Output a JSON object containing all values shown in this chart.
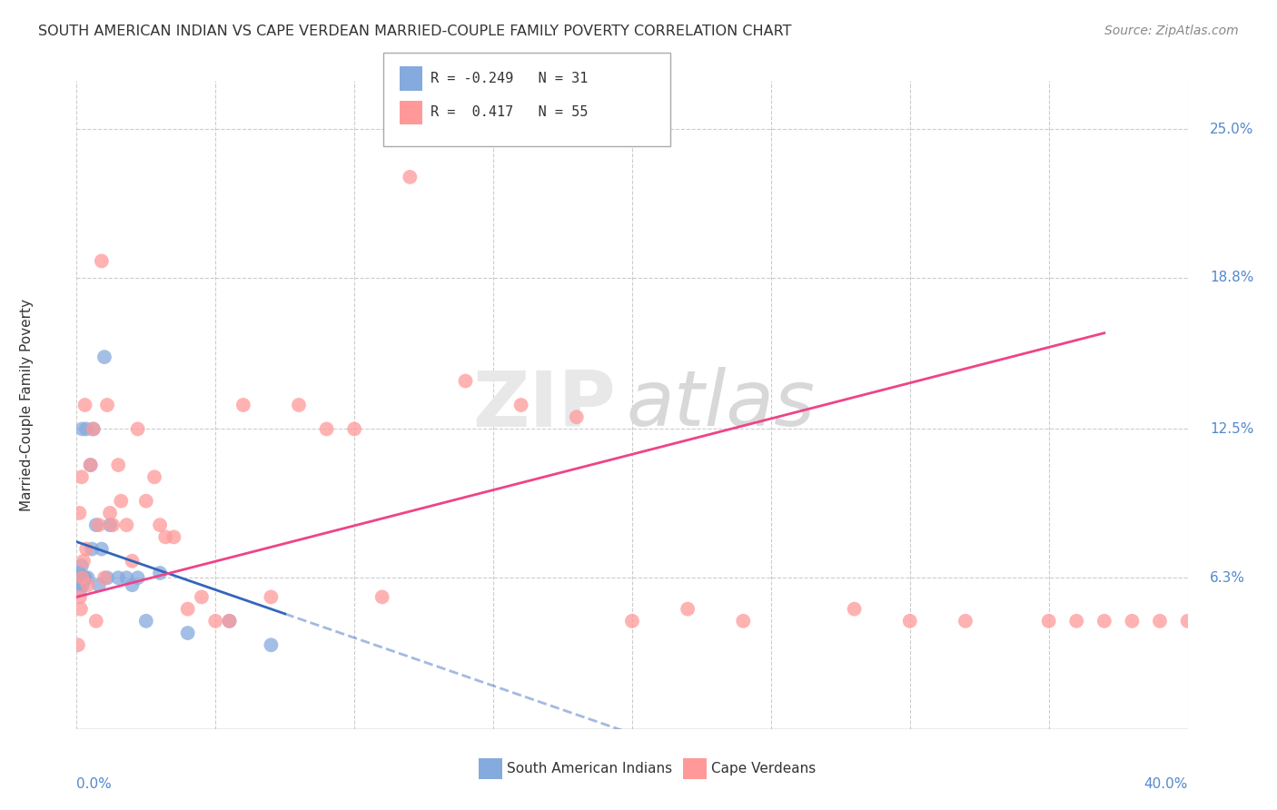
{
  "title": "SOUTH AMERICAN INDIAN VS CAPE VERDEAN MARRIED-COUPLE FAMILY POVERTY CORRELATION CHART",
  "source": "Source: ZipAtlas.com",
  "ylabel": "Married-Couple Family Poverty",
  "ytick_labels": [
    "6.3%",
    "12.5%",
    "18.8%",
    "25.0%"
  ],
  "ytick_values": [
    6.3,
    12.5,
    18.8,
    25.0
  ],
  "xmin": 0.0,
  "xmax": 40.0,
  "ymin": 0.0,
  "ymax": 27.0,
  "legend_blue_R": -0.249,
  "legend_blue_N": 31,
  "legend_pink_R": 0.417,
  "legend_pink_N": 55,
  "label_blue": "South American Indians",
  "label_pink": "Cape Verdeans",
  "blue_color": "#85AADD",
  "pink_color": "#FF9999",
  "blue_scatter_x": [
    0.05,
    0.08,
    0.1,
    0.12,
    0.15,
    0.18,
    0.2,
    0.22,
    0.25,
    0.28,
    0.3,
    0.35,
    0.4,
    0.5,
    0.55,
    0.6,
    0.7,
    0.8,
    0.9,
    1.0,
    1.1,
    1.2,
    1.5,
    1.8,
    2.0,
    2.2,
    2.5,
    3.0,
    4.0,
    5.5,
    7.0
  ],
  "blue_scatter_y": [
    6.3,
    6.0,
    6.5,
    5.8,
    6.3,
    6.8,
    12.5,
    6.0,
    6.3,
    6.3,
    6.3,
    12.5,
    6.3,
    11.0,
    7.5,
    12.5,
    8.5,
    6.0,
    7.5,
    15.5,
    6.3,
    8.5,
    6.3,
    6.3,
    6.0,
    6.3,
    4.5,
    6.5,
    4.0,
    4.5,
    3.5
  ],
  "pink_scatter_x": [
    0.05,
    0.1,
    0.12,
    0.15,
    0.18,
    0.2,
    0.25,
    0.3,
    0.35,
    0.4,
    0.5,
    0.6,
    0.7,
    0.8,
    0.9,
    1.0,
    1.1,
    1.2,
    1.3,
    1.5,
    1.6,
    1.8,
    2.0,
    2.2,
    2.5,
    2.8,
    3.0,
    3.2,
    3.5,
    4.0,
    4.5,
    5.0,
    5.5,
    6.0,
    7.0,
    8.0,
    9.0,
    10.0,
    11.0,
    12.0,
    14.0,
    16.0,
    18.0,
    20.0,
    22.0,
    24.0,
    28.0,
    30.0,
    32.0,
    35.0,
    36.0,
    37.0,
    38.0,
    39.0,
    40.0
  ],
  "pink_scatter_y": [
    3.5,
    9.0,
    5.5,
    5.0,
    10.5,
    6.3,
    7.0,
    13.5,
    7.5,
    6.0,
    11.0,
    12.5,
    4.5,
    8.5,
    19.5,
    6.3,
    13.5,
    9.0,
    8.5,
    11.0,
    9.5,
    8.5,
    7.0,
    12.5,
    9.5,
    10.5,
    8.5,
    8.0,
    8.0,
    5.0,
    5.5,
    4.5,
    4.5,
    13.5,
    5.5,
    13.5,
    12.5,
    12.5,
    5.5,
    23.0,
    14.5,
    13.5,
    13.0,
    4.5,
    5.0,
    4.5,
    5.0,
    4.5,
    4.5,
    4.5,
    4.5,
    4.5,
    4.5,
    4.5,
    4.5
  ],
  "blue_trend_x0": 0.0,
  "blue_trend_x1": 7.5,
  "blue_trend_y0": 7.8,
  "blue_trend_y1": 4.8,
  "blue_dash_x1": 20.0,
  "pink_trend_x0": 0.0,
  "pink_trend_x1": 37.0,
  "pink_trend_y0": 5.5,
  "pink_trend_y1": 16.5
}
